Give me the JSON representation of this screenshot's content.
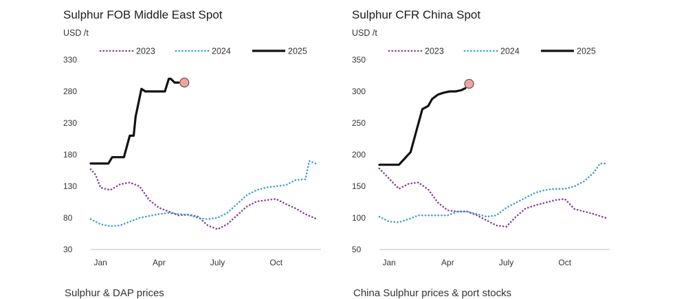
{
  "chart_data": [
    {
      "type": "line",
      "title": "Sulphur FOB Middle East Spot",
      "ylabel": "USD /t",
      "xlabel": "",
      "ylim": [
        30,
        330
      ],
      "yticks": [
        30,
        80,
        130,
        180,
        230,
        280,
        330
      ],
      "xlim": [
        1,
        12.8
      ],
      "xticks": [
        {
          "x": 1.5,
          "label": "Jan"
        },
        {
          "x": 4.5,
          "label": "Apr"
        },
        {
          "x": 7.5,
          "label": "July"
        },
        {
          "x": 10.5,
          "label": "Oct"
        }
      ],
      "grid": false,
      "legend_position": "top",
      "series": [
        {
          "name": "2023",
          "style": "dotted",
          "color": "#8b3a9c",
          "x": [
            1.0,
            1.25,
            1.5,
            2.0,
            2.5,
            3.0,
            3.5,
            4.0,
            4.5,
            5.0,
            5.5,
            6.0,
            6.5,
            7.0,
            7.5,
            8.0,
            8.5,
            9.0,
            9.5,
            10.0,
            10.5,
            11.0,
            11.5,
            12.0,
            12.6
          ],
          "y": [
            157,
            148,
            128,
            124,
            133,
            136,
            130,
            108,
            96,
            90,
            84,
            85,
            82,
            68,
            62,
            70,
            84,
            98,
            106,
            108,
            110,
            102,
            95,
            86,
            78
          ]
        },
        {
          "name": "2024",
          "style": "dotted",
          "color": "#3a9fd1",
          "x": [
            1.0,
            1.5,
            2.0,
            2.5,
            3.0,
            3.5,
            4.0,
            4.5,
            5.0,
            5.5,
            6.0,
            6.5,
            7.0,
            7.5,
            8.0,
            8.5,
            9.0,
            9.5,
            10.0,
            10.5,
            11.0,
            11.5,
            12.0,
            12.2,
            12.6
          ],
          "y": [
            78,
            70,
            67,
            68,
            74,
            80,
            83,
            86,
            88,
            86,
            85,
            80,
            78,
            80,
            88,
            102,
            116,
            124,
            128,
            130,
            132,
            140,
            141,
            170,
            165
          ]
        },
        {
          "name": "2025",
          "style": "solid",
          "color": "#111111",
          "x": [
            1.0,
            1.5,
            1.9,
            2.1,
            2.4,
            2.7,
            3.0,
            3.2,
            3.3,
            3.6,
            3.8,
            4.0,
            4.2,
            4.5,
            4.8,
            5.0,
            5.1,
            5.3,
            5.5
          ],
          "y": [
            166,
            166,
            166,
            176,
            176,
            176,
            210,
            210,
            240,
            284,
            280,
            280,
            280,
            280,
            280,
            300,
            300,
            294,
            294
          ]
        }
      ],
      "marker": {
        "x": 5.8,
        "y": 294,
        "color": "#f2a3a3"
      }
    },
    {
      "type": "line",
      "title": "Sulphur CFR China Spot",
      "ylabel": "USD /t",
      "xlabel": "",
      "ylim": [
        50,
        350
      ],
      "yticks": [
        50,
        100,
        150,
        200,
        250,
        300,
        350
      ],
      "xlim": [
        1,
        12.8
      ],
      "xticks": [
        {
          "x": 1.5,
          "label": "Jan"
        },
        {
          "x": 4.5,
          "label": "Apr"
        },
        {
          "x": 7.5,
          "label": "July"
        },
        {
          "x": 10.5,
          "label": "Oct"
        }
      ],
      "grid": false,
      "legend_position": "top",
      "series": [
        {
          "name": "2023",
          "style": "dotted",
          "color": "#8b3a9c",
          "x": [
            1.0,
            1.5,
            2.0,
            2.5,
            3.0,
            3.5,
            4.0,
            4.5,
            5.0,
            5.5,
            6.0,
            6.5,
            7.0,
            7.5,
            8.0,
            8.5,
            9.0,
            9.5,
            10.0,
            10.5,
            11.0,
            11.5,
            12.0,
            12.6
          ],
          "y": [
            178,
            162,
            146,
            154,
            156,
            145,
            124,
            112,
            110,
            110,
            104,
            96,
            88,
            86,
            102,
            115,
            120,
            124,
            128,
            130,
            114,
            110,
            106,
            100
          ]
        },
        {
          "name": "2024",
          "style": "dotted",
          "color": "#3a9fd1",
          "x": [
            1.0,
            1.5,
            2.0,
            2.5,
            3.0,
            3.5,
            4.0,
            4.5,
            5.0,
            5.5,
            6.0,
            6.5,
            7.0,
            7.5,
            8.0,
            8.5,
            9.0,
            9.5,
            10.0,
            10.5,
            11.0,
            11.5,
            12.0,
            12.3,
            12.6
          ],
          "y": [
            102,
            94,
            93,
            98,
            104,
            104,
            104,
            104,
            110,
            110,
            106,
            102,
            104,
            116,
            124,
            132,
            140,
            144,
            146,
            146,
            150,
            158,
            172,
            186,
            186
          ]
        },
        {
          "name": "2025",
          "style": "solid",
          "color": "#111111",
          "x": [
            1.0,
            1.5,
            2.0,
            2.3,
            2.6,
            2.9,
            3.2,
            3.5,
            3.7,
            4.0,
            4.3,
            4.6,
            4.9,
            5.2,
            5.4
          ],
          "y": [
            184,
            184,
            184,
            194,
            204,
            238,
            272,
            277,
            288,
            295,
            298,
            300,
            300,
            302,
            305
          ]
        }
      ],
      "marker": {
        "x": 5.6,
        "y": 312,
        "color": "#f2a3a3"
      }
    }
  ],
  "bottom_titles": [
    "Sulphur & DAP prices",
    "China Sulphur prices & port stocks"
  ]
}
